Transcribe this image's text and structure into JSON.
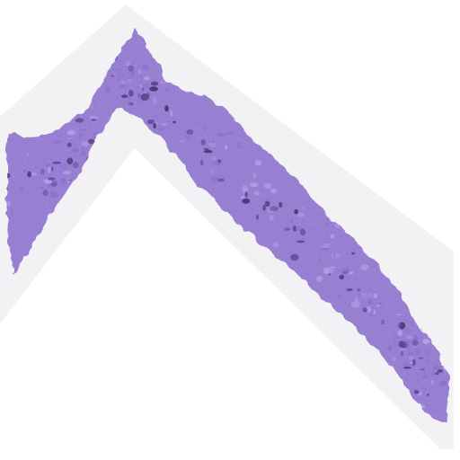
{
  "image": {
    "subject": "tissue-section-scan",
    "background_color": "#ffffff",
    "scan_band_color": "#f2f2f5",
    "tissue_colors": {
      "base": "#9b83d9",
      "light": "#b5a2e6",
      "mid": "#8c6ed1",
      "dark": "#5b3d93",
      "deep": "#3d2a66"
    }
  }
}
